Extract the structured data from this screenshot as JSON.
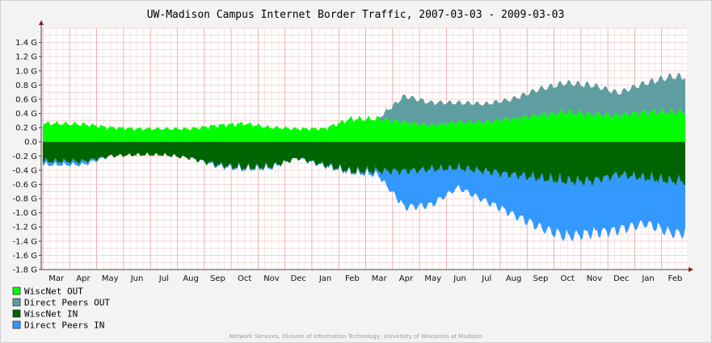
{
  "chart_data": {
    "type": "area",
    "title": "UW-Madison Campus Internet Border Traffic, 2007-03-03 - 2009-03-03",
    "xlabel": "",
    "ylabel": "",
    "ylim": [
      -1.8,
      1.6
    ],
    "y_unit": "G",
    "grid": true,
    "legend_position": "bottom-left",
    "y_ticks": [
      1.4,
      1.2,
      1.0,
      0.8,
      0.6,
      0.4,
      0.2,
      0.0,
      -0.2,
      -0.4,
      -0.6,
      -0.8,
      -1.0,
      -1.2,
      -1.4,
      -1.6,
      -1.8
    ],
    "y_tick_labels": [
      "1.4 G",
      "1.2 G",
      "1.0 G",
      "0.8 G",
      "0.6 G",
      "0.4 G",
      "0.2 G",
      "0.0",
      "-0.2 G",
      "-0.4 G",
      "-0.6 G",
      "-0.8 G",
      "-1.0 G",
      "-1.2 G",
      "-1.4 G",
      "-1.6 G",
      "-1.8 G"
    ],
    "x": [
      "Mar 2007",
      "Apr 2007",
      "May 2007",
      "Jun 2007",
      "Jul 2007",
      "Aug 2007",
      "Sep 2007",
      "Oct 2007",
      "Nov 2007",
      "Dec 2007",
      "Jan 2008",
      "Feb 2008",
      "Mar 2008",
      "Apr 2008",
      "May 2008",
      "Jun 2008",
      "Jul 2008",
      "Aug 2008",
      "Sep 2008",
      "Oct 2008",
      "Nov 2008",
      "Dec 2008",
      "Jan 2009",
      "Feb 2009"
    ],
    "x_tick_labels": [
      "Mar",
      "Apr",
      "May",
      "Jun",
      "Jul",
      "Aug",
      "Sep",
      "Oct",
      "Nov",
      "Dec",
      "Jan",
      "Feb",
      "Mar",
      "Apr",
      "May",
      "Jun",
      "Jul",
      "Aug",
      "Sep",
      "Oct",
      "Nov",
      "Dec",
      "Jan",
      "Feb"
    ],
    "series": [
      {
        "name": "WiscNet OUT",
        "color": "#00ff00",
        "direction": "out",
        "values": [
          0.28,
          0.27,
          0.22,
          0.2,
          0.2,
          0.2,
          0.25,
          0.28,
          0.22,
          0.2,
          0.2,
          0.35,
          0.35,
          0.3,
          0.25,
          0.3,
          0.3,
          0.35,
          0.4,
          0.45,
          0.42,
          0.4,
          0.45,
          0.45
        ]
      },
      {
        "name": "Direct Peers OUT",
        "color": "#5f9ea0",
        "direction": "out",
        "values": [
          0,
          0,
          0,
          0,
          0,
          0,
          0,
          0,
          0,
          0,
          0,
          0,
          0,
          0.4,
          0.35,
          0.3,
          0.28,
          0.3,
          0.4,
          0.45,
          0.45,
          0.35,
          0.45,
          0.55
        ]
      },
      {
        "name": "WiscNet IN",
        "color": "#006400",
        "direction": "in",
        "values": [
          -0.3,
          -0.3,
          -0.22,
          -0.2,
          -0.2,
          -0.25,
          -0.35,
          -0.4,
          -0.38,
          -0.25,
          -0.35,
          -0.45,
          -0.45,
          -0.45,
          -0.42,
          -0.4,
          -0.45,
          -0.5,
          -0.55,
          -0.6,
          -0.6,
          -0.5,
          -0.55,
          -0.6
        ]
      },
      {
        "name": "Direct Peers IN",
        "color": "#3399ff",
        "direction": "in",
        "values": [
          -0.05,
          -0.05,
          0,
          0,
          0,
          0,
          -0.02,
          -0.02,
          -0.02,
          0,
          -0.02,
          -0.02,
          -0.05,
          -0.55,
          -0.55,
          -0.3,
          -0.45,
          -0.6,
          -0.75,
          -0.85,
          -0.8,
          -0.85,
          -0.7,
          -0.8
        ]
      }
    ]
  },
  "footer": "Network Services, Division of Information Technology, University of Wisconsin at Madison"
}
